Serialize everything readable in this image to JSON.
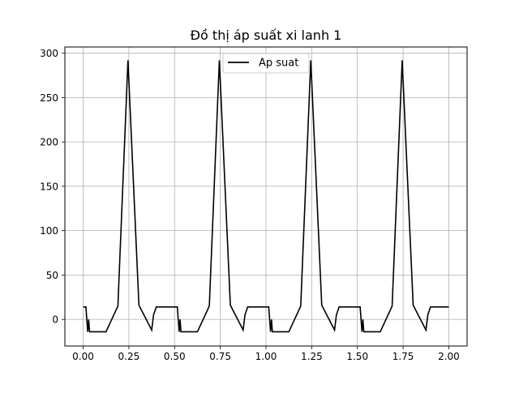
{
  "chart_data": {
    "type": "line",
    "title": "Đồ thị áp suất xi lanh 1",
    "xlabel": "",
    "ylabel": "",
    "xlim": [
      -0.1,
      2.1
    ],
    "ylim": [
      -30,
      307
    ],
    "xticks": [
      0.0,
      0.25,
      0.5,
      0.75,
      1.0,
      1.25,
      1.5,
      1.75,
      2.0
    ],
    "xtick_labels": [
      "0.00",
      "0.25",
      "0.50",
      "0.75",
      "1.00",
      "1.25",
      "1.50",
      "1.75",
      "2.00"
    ],
    "yticks": [
      0,
      50,
      100,
      150,
      200,
      250,
      300
    ],
    "ytick_labels": [
      "0",
      "50",
      "100",
      "150",
      "200",
      "250",
      "300"
    ],
    "grid": true,
    "legend_position": "upper-center",
    "series": [
      {
        "name": "Ap suat",
        "color": "#000000",
        "x": [
          0.0,
          0.015,
          0.02,
          0.025,
          0.03,
          0.035,
          0.06,
          0.125,
          0.19,
          0.245,
          0.305,
          0.375,
          0.385,
          0.4,
          0.45,
          0.5,
          0.515,
          0.52,
          0.525,
          0.53,
          0.535,
          0.56,
          0.625,
          0.69,
          0.745,
          0.805,
          0.875,
          0.885,
          0.9,
          0.95,
          1.0,
          1.015,
          1.02,
          1.025,
          1.03,
          1.035,
          1.06,
          1.125,
          1.19,
          1.245,
          1.305,
          1.375,
          1.385,
          1.4,
          1.45,
          1.5,
          1.515,
          1.52,
          1.525,
          1.53,
          1.535,
          1.56,
          1.625,
          1.69,
          1.745,
          1.805,
          1.875,
          1.885,
          1.9,
          1.95,
          2.0
        ],
        "y": [
          14,
          14,
          0,
          -14,
          0,
          -14,
          -14,
          -14,
          15,
          292,
          16,
          -12,
          5,
          14,
          14,
          14,
          14,
          0,
          -14,
          0,
          -14,
          -14,
          -14,
          15,
          292,
          16,
          -12,
          5,
          14,
          14,
          14,
          14,
          0,
          -14,
          0,
          -14,
          -14,
          -14,
          15,
          292,
          16,
          -12,
          5,
          14,
          14,
          14,
          14,
          0,
          -14,
          0,
          -14,
          -14,
          -14,
          15,
          292,
          16,
          -12,
          5,
          14,
          14,
          14
        ]
      }
    ]
  }
}
